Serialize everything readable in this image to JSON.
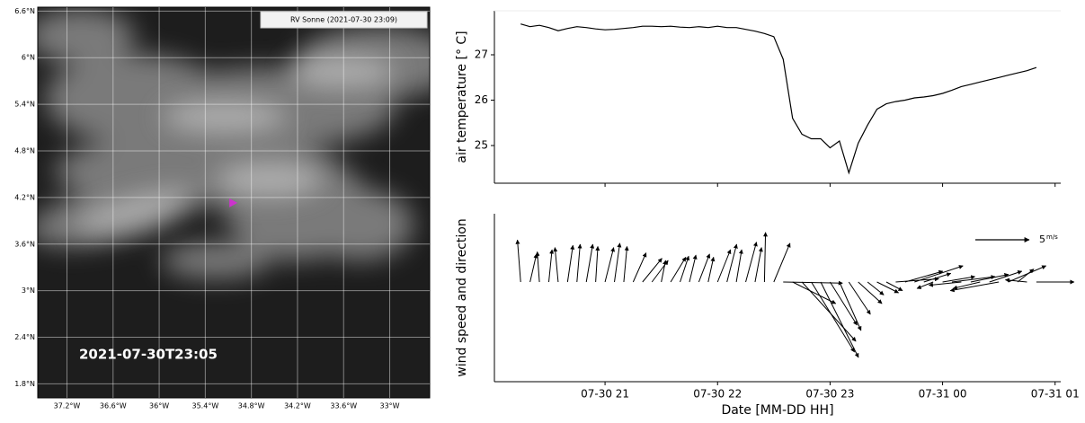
{
  "map": {
    "xlim": [
      -37.58,
      -32.48
    ],
    "ylim": [
      1.62,
      6.65
    ],
    "xticks": [
      {
        "value": -37.2,
        "label": "37.2°W"
      },
      {
        "value": -36.6,
        "label": "36.6°W"
      },
      {
        "value": -36,
        "label": "36°W"
      },
      {
        "value": -35.4,
        "label": "35.4°W"
      },
      {
        "value": -34.8,
        "label": "34.8°W"
      },
      {
        "value": -34.2,
        "label": "34.2°W"
      },
      {
        "value": -33.6,
        "label": "33.6°W"
      },
      {
        "value": -33,
        "label": "33°W"
      }
    ],
    "yticks": [
      {
        "value": 6.6,
        "label": "6.6°N"
      },
      {
        "value": 6,
        "label": "6°N"
      },
      {
        "value": 5.4,
        "label": "5.4°N"
      },
      {
        "value": 4.8,
        "label": "4.8°N"
      },
      {
        "value": 4.2,
        "label": "4.2°N"
      },
      {
        "value": 3.6,
        "label": "3.6°N"
      },
      {
        "value": 3,
        "label": "3°N"
      },
      {
        "value": 2.4,
        "label": "2.4°N"
      },
      {
        "value": 1.8,
        "label": "1.8°N"
      }
    ],
    "ship": {
      "name": "RV Sonne (2021-07-30 23:09)",
      "lon": -35.04,
      "lat": 4.13,
      "color": "#cc33cc"
    },
    "timestamp": "2021-07-30T23:05"
  },
  "chart_data": [
    {
      "type": "line",
      "ylabel": "air temperature [° C]",
      "color": "#000000",
      "xlim": [
        "07-30 20:01",
        "07-31 01:03"
      ],
      "ylim": [
        24.17,
        27.97
      ],
      "yticks": [
        25,
        26,
        27
      ],
      "xticks": [
        {
          "value": "07-30 21:00",
          "label": "07-30 21"
        },
        {
          "value": "07-30 22:00",
          "label": "07-30 22"
        },
        {
          "value": "07-30 23:00",
          "label": "07-30 23"
        },
        {
          "value": "07-31 00:00",
          "label": "07-31 00"
        },
        {
          "value": "07-31 01:00",
          "label": "07-31 01"
        }
      ],
      "x": [
        "07-30 20:15",
        "07-30 20:20",
        "07-30 20:25",
        "07-30 20:30",
        "07-30 20:35",
        "07-30 20:40",
        "07-30 20:45",
        "07-30 20:50",
        "07-30 20:55",
        "07-30 21:00",
        "07-30 21:05",
        "07-30 21:10",
        "07-30 21:15",
        "07-30 21:20",
        "07-30 21:25",
        "07-30 21:30",
        "07-30 21:35",
        "07-30 21:40",
        "07-30 21:45",
        "07-30 21:50",
        "07-30 21:55",
        "07-30 22:00",
        "07-30 22:05",
        "07-30 22:10",
        "07-30 22:15",
        "07-30 22:20",
        "07-30 22:25",
        "07-30 22:30",
        "07-30 22:35",
        "07-30 22:40",
        "07-30 22:45",
        "07-30 22:50",
        "07-30 22:55",
        "07-30 23:00",
        "07-30 23:05",
        "07-30 23:10",
        "07-30 23:15",
        "07-30 23:20",
        "07-30 23:25",
        "07-30 23:30",
        "07-30 23:35",
        "07-30 23:40",
        "07-30 23:45",
        "07-30 23:50",
        "07-30 23:55",
        "07-31 00:00",
        "07-31 00:05",
        "07-31 00:10",
        "07-31 00:15",
        "07-31 00:20",
        "07-31 00:25",
        "07-31 00:30",
        "07-31 00:35",
        "07-31 00:40",
        "07-31 00:45",
        "07-31 00:50"
      ],
      "values": [
        27.68,
        27.62,
        27.65,
        27.6,
        27.53,
        27.58,
        27.62,
        27.6,
        27.57,
        27.55,
        27.56,
        27.58,
        27.6,
        27.63,
        27.63,
        27.62,
        27.63,
        27.61,
        27.6,
        27.62,
        27.6,
        27.63,
        27.6,
        27.6,
        27.56,
        27.52,
        27.47,
        27.4,
        26.9,
        25.6,
        25.25,
        25.15,
        25.15,
        24.95,
        25.1,
        24.4,
        25.05,
        25.45,
        25.8,
        25.92,
        25.97,
        26.0,
        26.05,
        26.07,
        26.1,
        26.15,
        26.22,
        26.3,
        26.35,
        26.4,
        26.45,
        26.5,
        26.55,
        26.6,
        26.65,
        26.72
      ]
    },
    {
      "type": "quiver",
      "ylabel": "wind speed and direction",
      "xlabel": "Date [MM-DD HH]",
      "color": "#000000",
      "xlim": [
        "07-30 20:01",
        "07-31 01:03"
      ],
      "xticks": [
        {
          "value": "07-30 21:00",
          "label": "07-30 21"
        },
        {
          "value": "07-30 22:00",
          "label": "07-30 22"
        },
        {
          "value": "07-30 23:00",
          "label": "07-30 23"
        },
        {
          "value": "07-31 00:00",
          "label": "07-31 00"
        },
        {
          "value": "07-31 01:00",
          "label": "07-31 01"
        }
      ],
      "key": {
        "value": 5,
        "unit": "m/s"
      },
      "x": [
        "07-30 20:15",
        "07-30 20:20",
        "07-30 20:25",
        "07-30 20:30",
        "07-30 20:35",
        "07-30 20:40",
        "07-30 20:45",
        "07-30 20:50",
        "07-30 20:55",
        "07-30 21:00",
        "07-30 21:05",
        "07-30 21:10",
        "07-30 21:15",
        "07-30 21:20",
        "07-30 21:25",
        "07-30 21:30",
        "07-30 21:35",
        "07-30 21:40",
        "07-30 21:45",
        "07-30 21:50",
        "07-30 21:55",
        "07-30 22:00",
        "07-30 22:05",
        "07-30 22:10",
        "07-30 22:15",
        "07-30 22:20",
        "07-30 22:25",
        "07-30 22:30",
        "07-30 22:35",
        "07-30 22:40",
        "07-30 22:45",
        "07-30 22:50",
        "07-30 22:55",
        "07-30 23:00",
        "07-30 23:05",
        "07-30 23:10",
        "07-30 23:15",
        "07-30 23:20",
        "07-30 23:25",
        "07-30 23:30",
        "07-30 23:35",
        "07-30 23:40",
        "07-30 23:45",
        "07-30 23:50",
        "07-30 23:55",
        "07-31 00:00",
        "07-31 00:05",
        "07-31 00:10",
        "07-31 00:15",
        "07-31 00:20",
        "07-31 00:25",
        "07-31 00:30",
        "07-31 00:35",
        "07-31 00:40",
        "07-31 00:45",
        "07-31 00:50"
      ],
      "u": [
        -0.3,
        0.6,
        -0.2,
        0.3,
        -0.3,
        0.5,
        0.3,
        0.6,
        0.2,
        0.8,
        0.5,
        0.3,
        1.2,
        1.8,
        1.5,
        0.4,
        1.4,
        0.8,
        0.6,
        1.0,
        0.5,
        1.2,
        0.9,
        0.5,
        1.0,
        0.6,
        0.1,
        1.5,
        5.5,
        4.0,
        5.0,
        4.0,
        3.5,
        2.5,
        2.0,
        2.0,
        2.2,
        1.5,
        2.0,
        1.5,
        4.0,
        3.5,
        4.5,
        2.5,
        -1.5,
        3.0,
        4.0,
        -3.0,
        3.5,
        -2.5,
        3.0,
        -4.5,
        3.5,
        1.5,
        -2.0,
        3.5
      ],
      "v": [
        3.9,
        2.6,
        2.8,
        3.0,
        3.2,
        3.4,
        3.5,
        3.5,
        3.3,
        3.2,
        3.6,
        3.3,
        2.7,
        2.2,
        2.0,
        2.0,
        2.3,
        2.4,
        2.5,
        2.6,
        2.3,
        3.0,
        3.5,
        3.0,
        3.7,
        3.2,
        4.6,
        3.6,
        -0.1,
        -2.0,
        -5.5,
        -6.5,
        -7.0,
        -4.0,
        -4.5,
        -3.0,
        -2.0,
        -1.2,
        -1.0,
        -0.8,
        0.3,
        1.0,
        1.5,
        0.8,
        -0.6,
        0.5,
        0.5,
        -0.3,
        0.7,
        -0.6,
        1.0,
        -0.8,
        1.5,
        1.2,
        0.2,
        0.0
      ]
    }
  ]
}
